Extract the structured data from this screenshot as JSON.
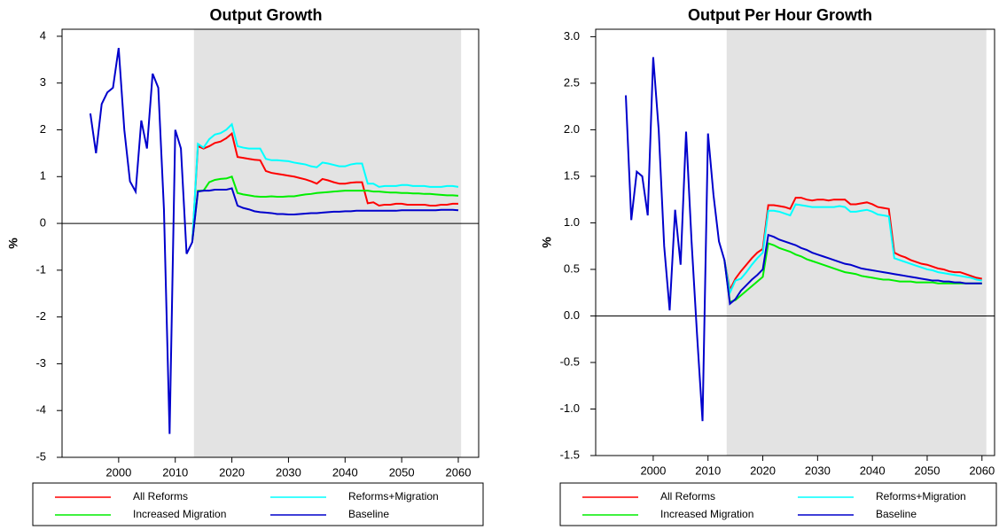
{
  "chart_data": [
    {
      "type": "line",
      "title": "Output Growth",
      "y_label": "%",
      "x": [
        1995,
        1996,
        1997,
        1998,
        1999,
        2000,
        2001,
        2002,
        2003,
        2004,
        2005,
        2006,
        2007,
        2008,
        2009,
        2010,
        2011,
        2012,
        2013,
        2014,
        2015,
        2016,
        2017,
        2018,
        2019,
        2020,
        2021,
        2022,
        2023,
        2024,
        2025,
        2026,
        2027,
        2028,
        2029,
        2030,
        2031,
        2032,
        2033,
        2034,
        2035,
        2036,
        2037,
        2038,
        2039,
        2040,
        2041,
        2042,
        2043,
        2044,
        2045,
        2046,
        2047,
        2048,
        2049,
        2050,
        2051,
        2052,
        2053,
        2054,
        2055,
        2056,
        2057,
        2058,
        2059,
        2060
      ],
      "xlim": [
        1990,
        2063.6
      ],
      "xticks": [
        2000,
        2010,
        2020,
        2030,
        2040,
        2050,
        2060
      ],
      "ylim": [
        -5,
        4.15
      ],
      "yticks": [
        -5,
        -4,
        -3,
        -2,
        -1,
        0,
        1,
        2,
        3,
        4
      ],
      "hline": 0,
      "shaded_region": [
        2013.3,
        2060.5
      ],
      "legend": "below",
      "series": [
        {
          "name": "All Reforms",
          "color": "#ff0000",
          "values": [
            null,
            null,
            null,
            null,
            null,
            null,
            null,
            null,
            null,
            null,
            null,
            null,
            null,
            null,
            null,
            null,
            null,
            null,
            -0.4,
            1.65,
            1.6,
            1.65,
            1.72,
            1.75,
            1.82,
            1.92,
            1.42,
            1.4,
            1.38,
            1.36,
            1.35,
            1.12,
            1.08,
            1.06,
            1.04,
            1.02,
            1.0,
            0.97,
            0.94,
            0.9,
            0.85,
            0.95,
            0.92,
            0.88,
            0.85,
            0.85,
            0.87,
            0.88,
            0.88,
            0.43,
            0.45,
            0.38,
            0.4,
            0.4,
            0.42,
            0.42,
            0.4,
            0.4,
            0.4,
            0.4,
            0.38,
            0.38,
            0.4,
            0.4,
            0.42,
            0.42
          ]
        },
        {
          "name": "Reforms+Migration",
          "color": "#00ffff",
          "values": [
            null,
            null,
            null,
            null,
            null,
            null,
            null,
            null,
            null,
            null,
            null,
            null,
            null,
            null,
            null,
            null,
            null,
            null,
            -0.4,
            1.7,
            1.62,
            1.8,
            1.9,
            1.93,
            2.0,
            2.12,
            1.65,
            1.62,
            1.6,
            1.6,
            1.6,
            1.38,
            1.35,
            1.35,
            1.34,
            1.33,
            1.3,
            1.28,
            1.26,
            1.22,
            1.2,
            1.3,
            1.28,
            1.25,
            1.22,
            1.22,
            1.26,
            1.28,
            1.28,
            0.85,
            0.85,
            0.78,
            0.8,
            0.8,
            0.8,
            0.82,
            0.82,
            0.8,
            0.8,
            0.8,
            0.78,
            0.78,
            0.78,
            0.8,
            0.8,
            0.78
          ]
        },
        {
          "name": "Increased Migration",
          "color": "#00ee00",
          "values": [
            null,
            null,
            null,
            null,
            null,
            null,
            null,
            null,
            null,
            null,
            null,
            null,
            null,
            null,
            null,
            null,
            null,
            null,
            -0.4,
            0.7,
            0.7,
            0.88,
            0.93,
            0.95,
            0.96,
            1.0,
            0.65,
            0.62,
            0.6,
            0.58,
            0.57,
            0.57,
            0.58,
            0.57,
            0.57,
            0.58,
            0.58,
            0.6,
            0.62,
            0.63,
            0.65,
            0.66,
            0.67,
            0.68,
            0.69,
            0.7,
            0.7,
            0.7,
            0.7,
            0.7,
            0.68,
            0.68,
            0.67,
            0.66,
            0.66,
            0.65,
            0.65,
            0.64,
            0.64,
            0.63,
            0.63,
            0.62,
            0.61,
            0.6,
            0.6,
            0.59
          ]
        },
        {
          "name": "Baseline",
          "color": "#0000cc",
          "values": [
            2.35,
            1.5,
            2.55,
            2.8,
            2.9,
            3.75,
            2.0,
            0.9,
            0.68,
            2.2,
            1.6,
            3.2,
            2.9,
            0.3,
            -4.5,
            2.0,
            1.6,
            -0.65,
            -0.4,
            0.68,
            0.7,
            0.7,
            0.72,
            0.72,
            0.72,
            0.75,
            0.38,
            0.33,
            0.3,
            0.26,
            0.24,
            0.23,
            0.22,
            0.2,
            0.2,
            0.19,
            0.19,
            0.2,
            0.21,
            0.22,
            0.22,
            0.23,
            0.24,
            0.25,
            0.25,
            0.26,
            0.26,
            0.27,
            0.27,
            0.27,
            0.27,
            0.27,
            0.27,
            0.27,
            0.27,
            0.28,
            0.28,
            0.28,
            0.28,
            0.28,
            0.28,
            0.28,
            0.29,
            0.29,
            0.29,
            0.28
          ]
        }
      ]
    },
    {
      "type": "line",
      "title": "Output Per Hour Growth",
      "y_label": "%",
      "x": [
        1995,
        1996,
        1997,
        1998,
        1999,
        2000,
        2001,
        2002,
        2003,
        2004,
        2005,
        2006,
        2007,
        2008,
        2009,
        2010,
        2011,
        2012,
        2013,
        2014,
        2015,
        2016,
        2017,
        2018,
        2019,
        2020,
        2021,
        2022,
        2023,
        2024,
        2025,
        2026,
        2027,
        2028,
        2029,
        2030,
        2031,
        2032,
        2033,
        2034,
        2035,
        2036,
        2037,
        2038,
        2039,
        2040,
        2041,
        2042,
        2043,
        2044,
        2045,
        2046,
        2047,
        2048,
        2049,
        2050,
        2051,
        2052,
        2053,
        2054,
        2055,
        2056,
        2057,
        2058,
        2059,
        2060
      ],
      "xlim": [
        1989.5,
        2062.3
      ],
      "xticks": [
        2000,
        2010,
        2020,
        2030,
        2040,
        2050,
        2060
      ],
      "ylim": [
        -1.5,
        3.08
      ],
      "yticks": [
        {
          "value": -1.5,
          "label": "-1.5"
        },
        {
          "value": -1,
          "label": "-1.0"
        },
        -0.5,
        {
          "value": 0,
          "label": "0.0"
        },
        0.5,
        {
          "value": 1,
          "label": "1.0"
        },
        1.5,
        {
          "value": 2,
          "label": "2.0"
        },
        2.5,
        {
          "value": 3,
          "label": "3.0"
        }
      ],
      "hline": 0,
      "shaded_region": [
        2013.4,
        2060.8
      ],
      "legend": "below",
      "series": [
        {
          "name": "All Reforms",
          "color": "#ff0000",
          "values": [
            null,
            null,
            null,
            null,
            null,
            null,
            null,
            null,
            null,
            null,
            null,
            null,
            null,
            null,
            null,
            null,
            null,
            null,
            0.6,
            0.28,
            0.4,
            0.48,
            0.55,
            0.62,
            0.68,
            0.72,
            1.19,
            1.19,
            1.18,
            1.17,
            1.15,
            1.27,
            1.27,
            1.25,
            1.24,
            1.25,
            1.25,
            1.24,
            1.25,
            1.25,
            1.25,
            1.2,
            1.2,
            1.21,
            1.22,
            1.2,
            1.17,
            1.16,
            1.15,
            0.68,
            0.65,
            0.63,
            0.6,
            0.58,
            0.56,
            0.55,
            0.53,
            0.51,
            0.5,
            0.48,
            0.47,
            0.47,
            0.45,
            0.43,
            0.41,
            0.4
          ]
        },
        {
          "name": "Reforms+Migration",
          "color": "#00ffff",
          "values": [
            null,
            null,
            null,
            null,
            null,
            null,
            null,
            null,
            null,
            null,
            null,
            null,
            null,
            null,
            null,
            null,
            null,
            null,
            0.6,
            0.25,
            0.38,
            0.4,
            0.47,
            0.55,
            0.62,
            0.68,
            1.13,
            1.13,
            1.12,
            1.1,
            1.08,
            1.2,
            1.19,
            1.18,
            1.17,
            1.17,
            1.17,
            1.17,
            1.17,
            1.18,
            1.17,
            1.12,
            1.12,
            1.13,
            1.14,
            1.12,
            1.09,
            1.08,
            1.07,
            0.62,
            0.6,
            0.58,
            0.56,
            0.54,
            0.52,
            0.5,
            0.49,
            0.47,
            0.46,
            0.45,
            0.44,
            0.43,
            0.42,
            0.41,
            0.39,
            0.38
          ]
        },
        {
          "name": "Increased Migration",
          "color": "#00ee00",
          "values": [
            null,
            null,
            null,
            null,
            null,
            null,
            null,
            null,
            null,
            null,
            null,
            null,
            null,
            null,
            null,
            null,
            null,
            null,
            0.6,
            0.15,
            0.17,
            0.22,
            0.27,
            0.32,
            0.37,
            0.42,
            0.78,
            0.76,
            0.73,
            0.71,
            0.69,
            0.66,
            0.64,
            0.61,
            0.59,
            0.57,
            0.55,
            0.53,
            0.51,
            0.49,
            0.47,
            0.46,
            0.45,
            0.43,
            0.42,
            0.41,
            0.4,
            0.39,
            0.39,
            0.38,
            0.37,
            0.37,
            0.37,
            0.36,
            0.36,
            0.36,
            0.36,
            0.35,
            0.35,
            0.35,
            0.35,
            0.35,
            0.35,
            0.35,
            0.35,
            0.35
          ]
        },
        {
          "name": "Baseline",
          "color": "#0000cc",
          "values": [
            2.37,
            1.03,
            1.55,
            1.5,
            1.08,
            2.78,
            2.0,
            0.75,
            0.06,
            1.14,
            0.55,
            1.98,
            0.8,
            -0.2,
            -1.13,
            1.96,
            1.3,
            0.8,
            0.6,
            0.13,
            0.18,
            0.27,
            0.33,
            0.39,
            0.44,
            0.5,
            0.87,
            0.85,
            0.82,
            0.8,
            0.78,
            0.76,
            0.73,
            0.71,
            0.68,
            0.66,
            0.64,
            0.62,
            0.6,
            0.58,
            0.56,
            0.55,
            0.53,
            0.51,
            0.5,
            0.49,
            0.48,
            0.47,
            0.46,
            0.45,
            0.44,
            0.43,
            0.42,
            0.41,
            0.4,
            0.39,
            0.38,
            0.38,
            0.37,
            0.37,
            0.36,
            0.36,
            0.35,
            0.35,
            0.35,
            0.35
          ]
        }
      ]
    }
  ]
}
